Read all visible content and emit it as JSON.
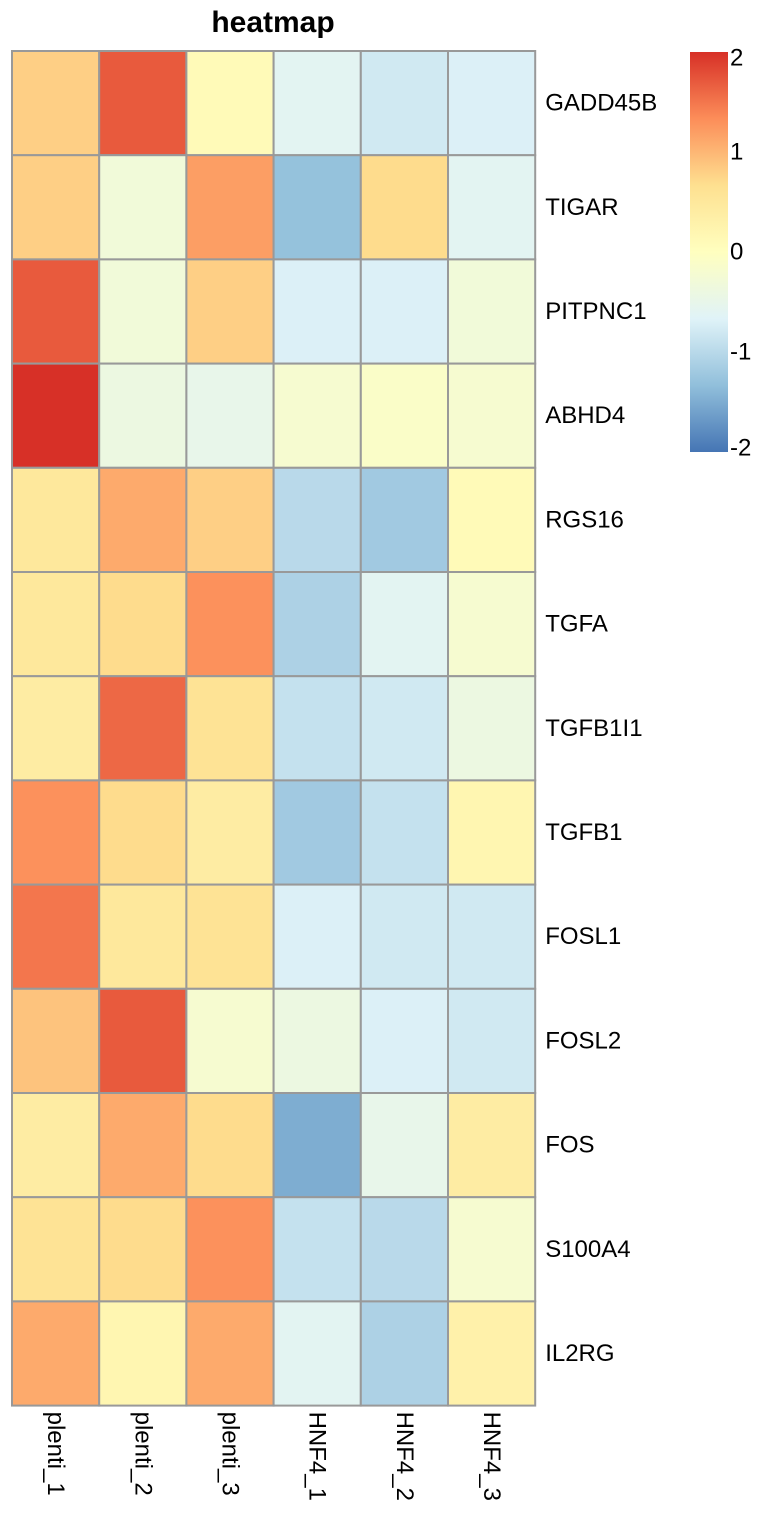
{
  "chart_data": {
    "type": "heatmap",
    "title": "heatmap",
    "columns": [
      "plenti_1",
      "plenti_2",
      "plenti_3",
      "HNF4_1",
      "HNF4_2",
      "HNF4_3"
    ],
    "rows": [
      "GADD45B",
      "TIGAR",
      "PITPNC1",
      "ABHD4",
      "RGS16",
      "TGFA",
      "TGFB1I1",
      "TGFB1",
      "FOSL1",
      "FOSL2",
      "FOS",
      "S100A4",
      "IL2RG"
    ],
    "values": [
      [
        0.8,
        1.7,
        0.1,
        -0.6,
        -0.8,
        -0.7
      ],
      [
        0.8,
        -0.3,
        1.2,
        -1.3,
        0.7,
        -0.6
      ],
      [
        1.7,
        -0.3,
        0.8,
        -0.7,
        -0.7,
        -0.3
      ],
      [
        2.0,
        -0.4,
        -0.5,
        -0.2,
        -0.1,
        -0.2
      ],
      [
        0.5,
        1.1,
        0.8,
        -1.0,
        -1.2,
        0.1
      ],
      [
        0.5,
        0.7,
        1.3,
        -1.1,
        -0.6,
        -0.2
      ],
      [
        0.4,
        1.6,
        0.6,
        -0.9,
        -0.8,
        -0.4
      ],
      [
        1.3,
        0.7,
        0.4,
        -1.2,
        -0.9,
        0.2
      ],
      [
        1.5,
        0.5,
        0.6,
        -0.7,
        -0.8,
        -0.8
      ],
      [
        0.9,
        1.7,
        -0.2,
        -0.4,
        -0.7,
        -0.8
      ],
      [
        0.4,
        1.1,
        0.7,
        -1.5,
        -0.5,
        0.4
      ],
      [
        0.6,
        0.7,
        1.3,
        -0.9,
        -1.0,
        -0.2
      ],
      [
        1.1,
        0.2,
        1.1,
        -0.6,
        -1.1,
        0.3
      ]
    ],
    "legend": {
      "range": [
        -2,
        2
      ],
      "ticks": [
        "2",
        "1",
        "0",
        "-1",
        "-2"
      ],
      "tick_values": [
        2,
        1,
        0,
        -1,
        -2
      ],
      "placement": "top-right"
    },
    "color_scale": [
      "#4575B4",
      "#91BFDB",
      "#E0F3F8",
      "#FFFFBF",
      "#FEE090",
      "#FC8D59",
      "#D73027"
    ],
    "grid_color": "#999999"
  }
}
